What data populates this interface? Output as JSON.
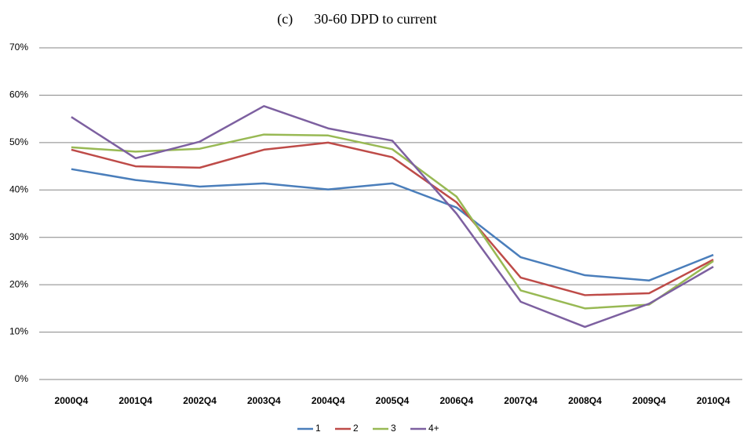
{
  "chart_data": {
    "type": "line",
    "title": "(c)      30-60 DPD to current",
    "categories": [
      "2000Q4",
      "2001Q4",
      "2002Q4",
      "2003Q4",
      "2004Q4",
      "2005Q4",
      "2006Q4",
      "2007Q4",
      "2008Q4",
      "2009Q4",
      "2010Q4"
    ],
    "series": [
      {
        "name": "1",
        "color": "#4a7ebb",
        "values": [
          44.4,
          42.1,
          40.7,
          41.4,
          40.1,
          41.4,
          36.3,
          25.8,
          22.0,
          20.9,
          26.3
        ]
      },
      {
        "name": "2",
        "color": "#be4b48",
        "values": [
          48.5,
          45.0,
          44.7,
          48.5,
          50.0,
          46.9,
          37.4,
          21.5,
          17.8,
          18.2,
          25.3
        ]
      },
      {
        "name": "3",
        "color": "#98b954",
        "values": [
          49.0,
          48.1,
          48.7,
          51.7,
          51.5,
          48.6,
          38.6,
          18.8,
          15.0,
          15.8,
          25.0
        ]
      },
      {
        "name": "4+",
        "color": "#7d60a0",
        "values": [
          55.4,
          46.7,
          50.2,
          57.7,
          53.0,
          50.4,
          35.0,
          16.4,
          11.1,
          16.0,
          23.8
        ]
      }
    ],
    "ylim": [
      0,
      70
    ],
    "yticks": [
      {
        "value": 0,
        "label": "0%"
      },
      {
        "value": 10,
        "label": "10%"
      },
      {
        "value": 20,
        "label": "20%"
      },
      {
        "value": 30,
        "label": "30%"
      },
      {
        "value": 40,
        "label": "40%"
      },
      {
        "value": 50,
        "label": "50%"
      },
      {
        "value": 60,
        "label": "60%"
      },
      {
        "value": 70,
        "label": "70%"
      }
    ],
    "grid": true,
    "legend": "bottom"
  }
}
